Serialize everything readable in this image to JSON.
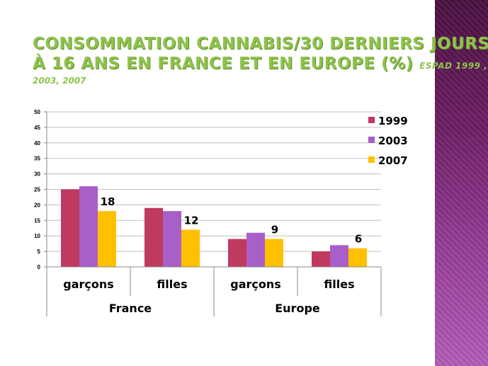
{
  "title": {
    "line1": "CONSOMMATION CANNABIS/30 DERNIERS JOURS",
    "line2": "À 16 ANS EN FRANCE ET EN EUROPE (%)",
    "source": "ESPAD 1999",
    "source_sep": " ,",
    "line3": "2003, 2007"
  },
  "chart_data": {
    "type": "bar",
    "groups": [
      {
        "name": "France",
        "categories": [
          "garçons",
          "filles"
        ]
      },
      {
        "name": "Europe",
        "categories": [
          "garçons",
          "filles"
        ]
      }
    ],
    "categories": [
      "garçons",
      "filles",
      "garçons",
      "filles"
    ],
    "series": [
      {
        "name": "1999",
        "color": "#c0395f",
        "values": [
          25,
          19,
          9,
          5
        ]
      },
      {
        "name": "2003",
        "color": "#a95fc8",
        "values": [
          26,
          18,
          11,
          7
        ]
      },
      {
        "name": "2007",
        "color": "#ffc000",
        "values": [
          18,
          12,
          9,
          6
        ]
      }
    ],
    "data_labels": {
      "series": "2007",
      "values": [
        "18",
        "12",
        "9",
        "6"
      ]
    },
    "yticks": [
      "0",
      "5",
      "10",
      "15",
      "20",
      "25",
      "30",
      "35",
      "40",
      "45",
      "50"
    ],
    "ylim": [
      0,
      50
    ],
    "grid": true,
    "legend": "top-right"
  }
}
